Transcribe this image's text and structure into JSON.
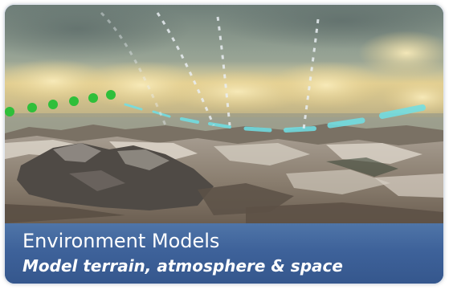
{
  "card": {
    "title": "Environment Models",
    "subtitle": "Model terrain, atmosphere & space"
  },
  "scene": {
    "sky_color": "#a7b3a6",
    "cloud_color": "#e8cf8a",
    "terrain_color": "#8f8578",
    "snow_color": "#ddd6cc",
    "trajectory_green": "#2fbf3a",
    "trajectory_cyan": "#6fe0e6",
    "trajectory_white": "#e9eef2"
  }
}
